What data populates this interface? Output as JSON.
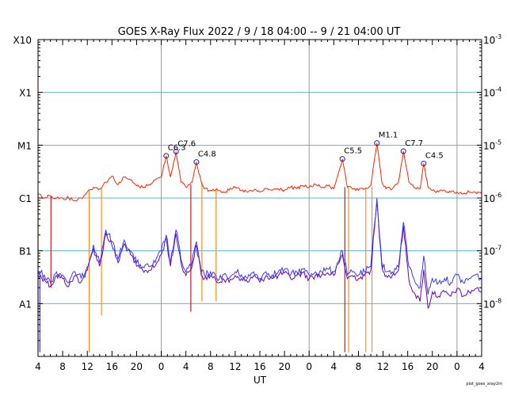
{
  "chart_data": {
    "type": "line",
    "title": "GOES X-Ray Flux   2022  /  9  /  18   04:00 --  9  /  21   04:00   UT",
    "xlabel": "UT",
    "credit": "plot_goes_xray2m",
    "x_range_hours": [
      0,
      72
    ],
    "x_tick_labels": [
      "4",
      "8",
      "12",
      "16",
      "20",
      "0",
      "4",
      "8",
      "12",
      "16",
      "20",
      "0",
      "4",
      "8",
      "12",
      "16",
      "20",
      "0",
      "4"
    ],
    "day_boundaries_hours": [
      20,
      44,
      68
    ],
    "y_scale": "log",
    "ylim": [
      1e-09,
      0.001
    ],
    "y_left_labels": [
      "X10",
      "X1",
      "M1",
      "C1",
      "B1",
      "A1"
    ],
    "y_right_labels": [
      {
        "base": "10",
        "exp": "-3"
      },
      {
        "base": "10",
        "exp": "-4"
      },
      {
        "base": "10",
        "exp": "-5"
      },
      {
        "base": "10",
        "exp": "-6"
      },
      {
        "base": "10",
        "exp": "-7"
      },
      {
        "base": "10",
        "exp": "-8"
      }
    ],
    "colors": {
      "long_channel": "#ff2200",
      "short_channel": "#3a3af0",
      "short_channel_secondary": "#6a00c8",
      "gaps_long": "#ff8c1a",
      "gridline": "#5ab4e6",
      "day_line": "#9a9a9a",
      "marker": "#1a1ad0"
    },
    "flares": [
      {
        "label": "C6.3",
        "hour": 20.8,
        "value": 6.3e-06
      },
      {
        "label": "C7.6",
        "hour": 22.4,
        "value": 7.6e-06
      },
      {
        "label": "C4.8",
        "hour": 25.7,
        "value": 4.8e-06
      },
      {
        "label": "C5.5",
        "hour": 49.4,
        "value": 5.5e-06
      },
      {
        "label": "M1.1",
        "hour": 55.0,
        "value": 1.1e-05
      },
      {
        "label": "C7.7",
        "hour": 59.3,
        "value": 7.7e-06
      },
      {
        "label": "C4.5",
        "hour": 62.6,
        "value": 4.5e-06
      }
    ],
    "series": [
      {
        "channel": "long",
        "points": [
          [
            0,
            1.2e-06
          ],
          [
            1,
            1e-06
          ],
          [
            2,
            1.1e-06
          ],
          [
            3,
            1e-06
          ],
          [
            4,
            1e-06
          ],
          [
            5,
            1e-06
          ],
          [
            6,
            9e-07
          ],
          [
            7,
            1e-06
          ],
          [
            8,
            1.3e-06
          ],
          [
            9,
            1.6e-06
          ],
          [
            10,
            1.5e-06
          ],
          [
            11,
            2e-06
          ],
          [
            12,
            2.6e-06
          ],
          [
            13,
            1.8e-06
          ],
          [
            14,
            2.5e-06
          ],
          [
            15,
            2.2e-06
          ],
          [
            16,
            1.7e-06
          ],
          [
            17,
            1.6e-06
          ],
          [
            18,
            1.8e-06
          ],
          [
            19,
            2.2e-06
          ],
          [
            20,
            2.5e-06
          ],
          [
            20.8,
            6.3e-06
          ],
          [
            21.5,
            2.5e-06
          ],
          [
            22.4,
            7.6e-06
          ],
          [
            23.2,
            2e-06
          ],
          [
            24,
            1.6e-06
          ],
          [
            25,
            2e-06
          ],
          [
            25.7,
            4.8e-06
          ],
          [
            26.5,
            2e-06
          ],
          [
            27,
            1.5e-06
          ],
          [
            28,
            1.4e-06
          ],
          [
            29,
            1.5e-06
          ],
          [
            30,
            1.3e-06
          ],
          [
            31,
            1.4e-06
          ],
          [
            32,
            1.6e-06
          ],
          [
            33,
            1.4e-06
          ],
          [
            34,
            1.3e-06
          ],
          [
            35,
            1.4e-06
          ],
          [
            36,
            1.3e-06
          ],
          [
            37,
            1.5e-06
          ],
          [
            38,
            1.4e-06
          ],
          [
            39,
            1.5e-06
          ],
          [
            40,
            1.4e-06
          ],
          [
            41,
            1.6e-06
          ],
          [
            42,
            1.5e-06
          ],
          [
            43,
            1.7e-06
          ],
          [
            44,
            1.6e-06
          ],
          [
            45,
            1.8e-06
          ],
          [
            46,
            1.6e-06
          ],
          [
            47,
            1.7e-06
          ],
          [
            48,
            1.5e-06
          ],
          [
            49.4,
            5.5e-06
          ],
          [
            50.2,
            1.6e-06
          ],
          [
            51,
            1.5e-06
          ],
          [
            52,
            1.4e-06
          ],
          [
            53,
            1.5e-06
          ],
          [
            54,
            1.7e-06
          ],
          [
            55,
            1.1e-05
          ],
          [
            55.8,
            2e-06
          ],
          [
            56.5,
            1.5e-06
          ],
          [
            57.5,
            1.5e-06
          ],
          [
            58.5,
            2e-06
          ],
          [
            59.3,
            7.7e-06
          ],
          [
            60.2,
            2e-06
          ],
          [
            61,
            1.6e-06
          ],
          [
            62,
            1.5e-06
          ],
          [
            62.6,
            4.5e-06
          ],
          [
            63.3,
            1.6e-06
          ],
          [
            64,
            1.4e-06
          ],
          [
            65,
            1.3e-06
          ],
          [
            66,
            1.4e-06
          ],
          [
            67,
            1.3e-06
          ],
          [
            68,
            1.3e-06
          ],
          [
            69,
            1.2e-06
          ],
          [
            70,
            1.3e-06
          ],
          [
            71,
            1.3e-06
          ],
          [
            72,
            1.2e-06
          ]
        ]
      },
      {
        "channel": "short",
        "points": [
          [
            0,
            4e-08
          ],
          [
            1,
            3.5e-08
          ],
          [
            2,
            2.5e-08
          ],
          [
            3,
            4e-08
          ],
          [
            4,
            3.5e-08
          ],
          [
            5,
            2.5e-08
          ],
          [
            6,
            4e-08
          ],
          [
            7,
            3e-08
          ],
          [
            8,
            5e-08
          ],
          [
            9,
            1.3e-07
          ],
          [
            10,
            6e-08
          ],
          [
            11,
            2.5e-07
          ],
          [
            12,
            1.5e-07
          ],
          [
            13,
            7e-08
          ],
          [
            14,
            1.6e-07
          ],
          [
            15,
            1e-07
          ],
          [
            16,
            6e-08
          ],
          [
            17,
            5e-08
          ],
          [
            18,
            5e-08
          ],
          [
            19,
            6e-08
          ],
          [
            20,
            1e-07
          ],
          [
            20.8,
            2e-07
          ],
          [
            21.5,
            6e-08
          ],
          [
            22.4,
            2.5e-07
          ],
          [
            23.2,
            7e-08
          ],
          [
            24,
            4e-08
          ],
          [
            25,
            6e-08
          ],
          [
            25.7,
            1.5e-07
          ],
          [
            26.5,
            4e-08
          ],
          [
            27,
            3.5e-08
          ],
          [
            28,
            4e-08
          ],
          [
            29,
            3e-08
          ],
          [
            30,
            3.5e-08
          ],
          [
            31,
            3e-08
          ],
          [
            32,
            4e-08
          ],
          [
            33,
            3.5e-08
          ],
          [
            34,
            3e-08
          ],
          [
            35,
            4e-08
          ],
          [
            36,
            3e-08
          ],
          [
            37,
            4e-08
          ],
          [
            38,
            3.5e-08
          ],
          [
            39,
            4e-08
          ],
          [
            40,
            4.5e-08
          ],
          [
            41,
            3.5e-08
          ],
          [
            42,
            4e-08
          ],
          [
            43,
            4.5e-08
          ],
          [
            44,
            3.5e-08
          ],
          [
            45,
            4e-08
          ],
          [
            46,
            4e-08
          ],
          [
            47,
            4.5e-08
          ],
          [
            48,
            4e-08
          ],
          [
            49.4,
            1e-07
          ],
          [
            50.2,
            3.5e-08
          ],
          [
            51,
            4e-08
          ],
          [
            52,
            3.5e-08
          ],
          [
            53,
            4e-08
          ],
          [
            54,
            5e-08
          ],
          [
            55,
            1e-06
          ],
          [
            55.8,
            6e-08
          ],
          [
            56.5,
            4e-08
          ],
          [
            57.5,
            4e-08
          ],
          [
            58.5,
            5e-08
          ],
          [
            59.3,
            3.5e-07
          ],
          [
            60.2,
            5e-08
          ],
          [
            61,
            3e-08
          ],
          [
            62,
            2e-08
          ],
          [
            62.6,
            8e-08
          ],
          [
            63.3,
            1.5e-08
          ],
          [
            64,
            3e-08
          ],
          [
            65,
            2.5e-08
          ],
          [
            66,
            3e-08
          ],
          [
            67,
            2.5e-08
          ],
          [
            68,
            3.5e-08
          ],
          [
            69,
            2.5e-08
          ],
          [
            70,
            3e-08
          ],
          [
            71,
            3.5e-08
          ],
          [
            72,
            3e-08
          ]
        ]
      }
    ]
  }
}
